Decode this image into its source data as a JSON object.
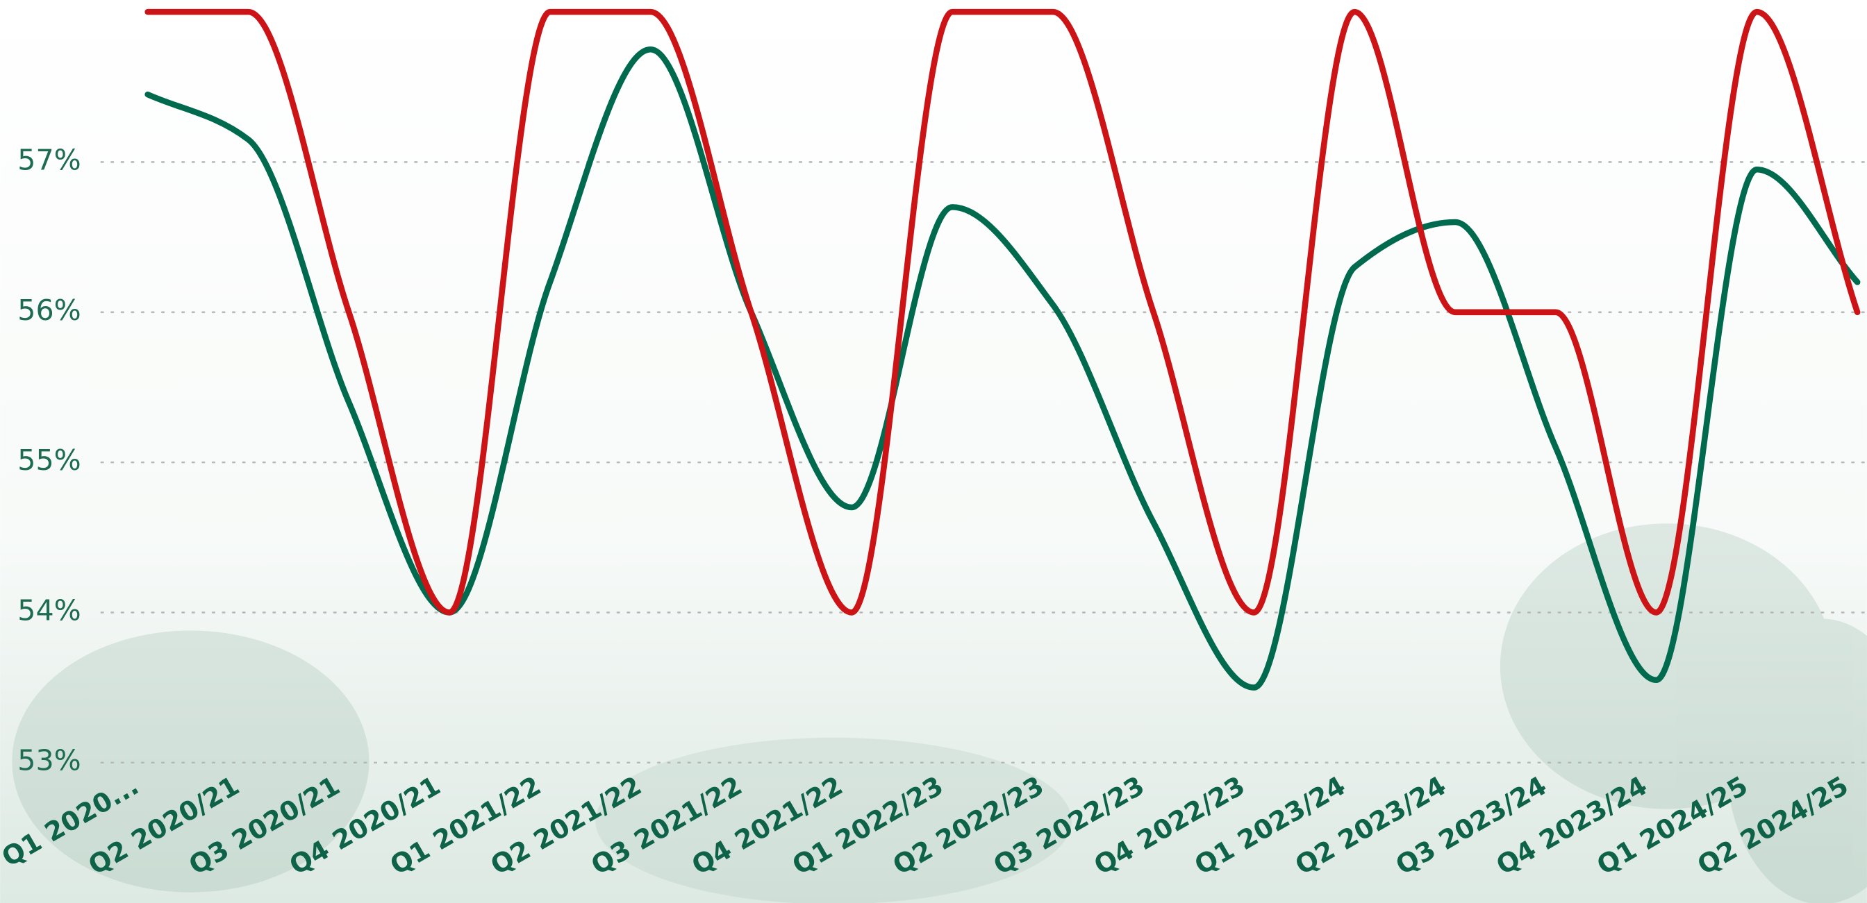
{
  "chart_data": {
    "type": "line",
    "categories": [
      "Q1 2020...",
      "Q2 2020/21",
      "Q3 2020/21",
      "Q4 2020/21",
      "Q1 2021/22",
      "Q2 2021/22",
      "Q3 2021/22",
      "Q4 2021/22",
      "Q1 2022/23",
      "Q2 2022/23",
      "Q3 2022/23",
      "Q4 2022/23",
      "Q1 2023/24",
      "Q2 2023/24",
      "Q3 2023/24",
      "Q4 2023/24",
      "Q1 2024/25",
      "Q2 2024/25"
    ],
    "series": [
      {
        "color": "#006a4e",
        "values": [
          57.45,
          57.15,
          55.4,
          54,
          56.2,
          57.75,
          56.0,
          54.7,
          56.7,
          56.05,
          54.6,
          53.5,
          56.3,
          56.6,
          55.1,
          53.55,
          56.95,
          56.2
        ]
      },
      {
        "color": "#cc1417",
        "values": [
          58,
          58,
          56.0,
          54,
          58,
          58,
          56.0,
          54,
          58,
          58,
          56.0,
          54,
          58,
          56,
          56,
          54,
          58,
          56
        ]
      }
    ],
    "ylim": [
      53,
      58
    ],
    "yticks": [
      {
        "value": 53,
        "label": "53%"
      },
      {
        "value": 54,
        "label": "54%"
      },
      {
        "value": 55,
        "label": "55%"
      },
      {
        "value": 56,
        "label": "56%"
      },
      {
        "value": 57,
        "label": "57%"
      }
    ],
    "grid": true
  }
}
